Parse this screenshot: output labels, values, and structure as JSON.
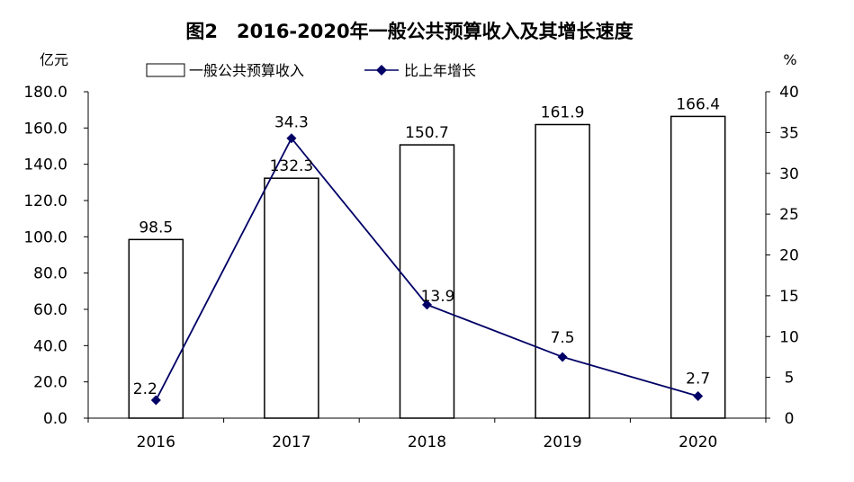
{
  "chart_data": {
    "type": "bar",
    "title": "图2　2016-2020年一般公共预算收入及其增长速度",
    "y_left_unit": "亿元",
    "y_right_unit": "%",
    "categories": [
      "2016",
      "2017",
      "2018",
      "2019",
      "2020"
    ],
    "y_left_range": [
      0,
      180
    ],
    "y_left_ticks": [
      "0.0",
      "20.0",
      "40.0",
      "60.0",
      "80.0",
      "100.0",
      "120.0",
      "140.0",
      "160.0",
      "180.0"
    ],
    "y_right_range": [
      0,
      40
    ],
    "y_right_ticks": [
      "0",
      "5",
      "10",
      "15",
      "20",
      "25",
      "30",
      "35",
      "40"
    ],
    "legend_placement": "top",
    "grid": false,
    "series": [
      {
        "name": "一般公共预算收入",
        "type": "bar",
        "axis": "left",
        "values": [
          98.5,
          132.3,
          150.7,
          161.9,
          166.4
        ],
        "labels": [
          "98.5",
          "132.3",
          "150.7",
          "161.9",
          "166.4"
        ],
        "fill": "#ffffff",
        "stroke": "#000000"
      },
      {
        "name": "比上年增长",
        "type": "line",
        "axis": "right",
        "values": [
          2.2,
          34.3,
          13.9,
          7.5,
          2.7
        ],
        "labels": [
          "2.2",
          "34.3",
          "13.9",
          "7.5",
          "2.7"
        ],
        "color": "#000066",
        "marker": "diamond"
      }
    ]
  }
}
